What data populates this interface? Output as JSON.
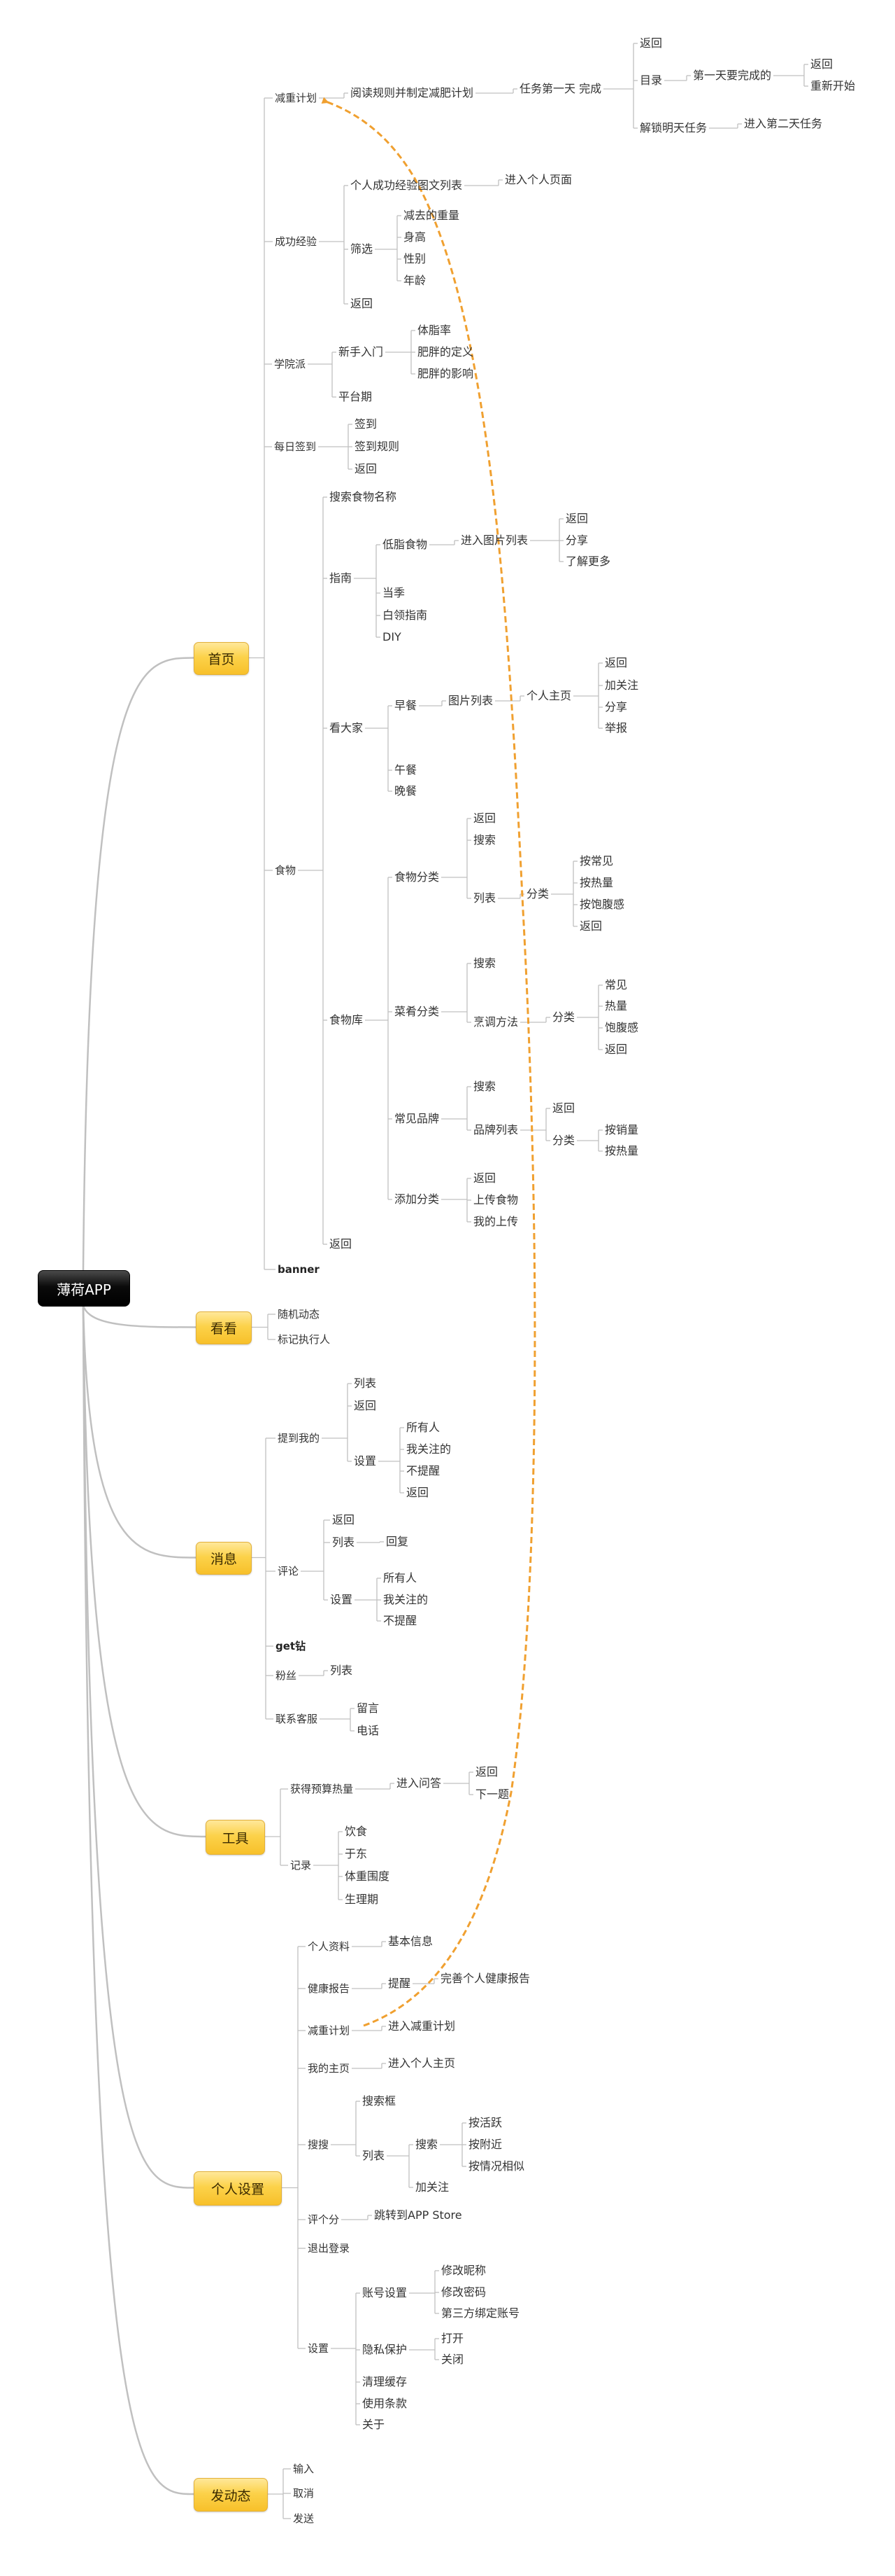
{
  "colors": {
    "main_topic": "#f9c73a",
    "root": "#000000",
    "link": "#c0c0c0",
    "relation_arrow": "#f0a030"
  },
  "relationship": {
    "from": "个人设置 / 减重计划",
    "to": "首页 / 减重计划",
    "style": "dashed-arrow"
  },
  "root": {
    "label": "薄荷APP",
    "children": [
      {
        "label": "首页",
        "children": [
          {
            "label": "减重计划",
            "children": [
              {
                "label": "阅读规则并制定减肥计划",
                "children": [
                  {
                    "label": "任务第一天 完成",
                    "children": [
                      {
                        "label": "返回"
                      },
                      {
                        "label": "目录",
                        "children": [
                          {
                            "label": "第一天要完成的",
                            "children": [
                              {
                                "label": "返回"
                              },
                              {
                                "label": "重新开始"
                              }
                            ]
                          }
                        ]
                      },
                      {
                        "label": "解锁明天任务",
                        "children": [
                          {
                            "label": "进入第二天任务"
                          }
                        ]
                      }
                    ]
                  }
                ]
              }
            ]
          },
          {
            "label": "成功经验",
            "children": [
              {
                "label": "个人成功经验图文列表",
                "children": [
                  {
                    "label": "进入个人页面"
                  }
                ]
              },
              {
                "label": "筛选",
                "children": [
                  {
                    "label": "减去的重量"
                  },
                  {
                    "label": "身高"
                  },
                  {
                    "label": "性别"
                  },
                  {
                    "label": "年龄"
                  }
                ]
              },
              {
                "label": "返回"
              }
            ]
          },
          {
            "label": "学院派",
            "children": [
              {
                "label": "新手入门",
                "children": [
                  {
                    "label": "体脂率"
                  },
                  {
                    "label": "肥胖的定义"
                  },
                  {
                    "label": "肥胖的影响"
                  }
                ]
              },
              {
                "label": "平台期"
              }
            ]
          },
          {
            "label": "每日签到",
            "children": [
              {
                "label": "签到"
              },
              {
                "label": "签到规则"
              },
              {
                "label": "返回"
              }
            ]
          },
          {
            "label": "食物",
            "children": [
              {
                "label": "搜索食物名称"
              },
              {
                "label": "指南",
                "children": [
                  {
                    "label": "低脂食物",
                    "children": [
                      {
                        "label": "进入图片列表",
                        "children": [
                          {
                            "label": "返回"
                          },
                          {
                            "label": "分享"
                          },
                          {
                            "label": "了解更多"
                          }
                        ]
                      }
                    ]
                  },
                  {
                    "label": "当季"
                  },
                  {
                    "label": "白领指南"
                  },
                  {
                    "label": "DIY"
                  }
                ]
              },
              {
                "label": "看大家",
                "children": [
                  {
                    "label": "早餐",
                    "children": [
                      {
                        "label": "图片列表",
                        "children": [
                          {
                            "label": "个人主页",
                            "children": [
                              {
                                "label": "返回"
                              },
                              {
                                "label": "加关注"
                              },
                              {
                                "label": "分享"
                              },
                              {
                                "label": "举报"
                              }
                            ]
                          }
                        ]
                      }
                    ]
                  },
                  {
                    "label": "午餐"
                  },
                  {
                    "label": "晚餐"
                  }
                ]
              },
              {
                "label": "食物库",
                "children": [
                  {
                    "label": "食物分类",
                    "children": [
                      {
                        "label": "返回"
                      },
                      {
                        "label": "搜索"
                      },
                      {
                        "label": "列表",
                        "children": [
                          {
                            "label": "分类",
                            "children": [
                              {
                                "label": "按常见"
                              },
                              {
                                "label": "按热量"
                              },
                              {
                                "label": "按饱腹感"
                              },
                              {
                                "label": "返回"
                              }
                            ]
                          }
                        ]
                      }
                    ]
                  },
                  {
                    "label": "菜肴分类",
                    "children": [
                      {
                        "label": "搜索"
                      },
                      {
                        "label": "烹调方法",
                        "children": [
                          {
                            "label": "分类",
                            "children": [
                              {
                                "label": "常见"
                              },
                              {
                                "label": "热量"
                              },
                              {
                                "label": "饱腹感"
                              },
                              {
                                "label": "返回"
                              }
                            ]
                          }
                        ]
                      }
                    ]
                  },
                  {
                    "label": "常见品牌",
                    "children": [
                      {
                        "label": "搜索"
                      },
                      {
                        "label": "品牌列表",
                        "children": [
                          {
                            "label": "返回"
                          },
                          {
                            "label": "分类",
                            "children": [
                              {
                                "label": "按销量"
                              },
                              {
                                "label": "按热量"
                              }
                            ]
                          }
                        ]
                      }
                    ]
                  },
                  {
                    "label": "添加分类",
                    "children": [
                      {
                        "label": "返回"
                      },
                      {
                        "label": "上传食物"
                      },
                      {
                        "label": "我的上传"
                      }
                    ]
                  }
                ]
              },
              {
                "label": "返回"
              }
            ]
          },
          {
            "label": "banner"
          }
        ]
      },
      {
        "label": "看看",
        "children": [
          {
            "label": "随机动态"
          },
          {
            "label": "标记执行人"
          }
        ]
      },
      {
        "label": "消息",
        "children": [
          {
            "label": "提到我的",
            "children": [
              {
                "label": "列表"
              },
              {
                "label": "返回"
              },
              {
                "label": "设置",
                "children": [
                  {
                    "label": "所有人"
                  },
                  {
                    "label": "我关注的"
                  },
                  {
                    "label": "不提醒"
                  },
                  {
                    "label": "返回"
                  }
                ]
              }
            ]
          },
          {
            "label": "评论",
            "children": [
              {
                "label": "返回"
              },
              {
                "label": "列表",
                "children": [
                  {
                    "label": "回复"
                  }
                ]
              },
              {
                "label": "设置",
                "children": [
                  {
                    "label": "所有人"
                  },
                  {
                    "label": "我关注的"
                  },
                  {
                    "label": "不提醒"
                  }
                ]
              }
            ]
          },
          {
            "label": "get钻"
          },
          {
            "label": "粉丝",
            "children": [
              {
                "label": "列表"
              }
            ]
          },
          {
            "label": "联系客服",
            "children": [
              {
                "label": "留言"
              },
              {
                "label": "电话"
              }
            ]
          }
        ]
      },
      {
        "label": "工具",
        "children": [
          {
            "label": "获得预算热量",
            "children": [
              {
                "label": "进入问答",
                "children": [
                  {
                    "label": "返回"
                  },
                  {
                    "label": "下一题"
                  }
                ]
              }
            ]
          },
          {
            "label": "记录",
            "children": [
              {
                "label": "饮食"
              },
              {
                "label": "于东"
              },
              {
                "label": "体重围度"
              },
              {
                "label": "生理期"
              }
            ]
          }
        ]
      },
      {
        "label": "个人设置",
        "children": [
          {
            "label": "个人资料",
            "children": [
              {
                "label": "基本信息"
              }
            ]
          },
          {
            "label": "健康报告",
            "children": [
              {
                "label": "提醒",
                "children": [
                  {
                    "label": "完善个人健康报告"
                  }
                ]
              }
            ]
          },
          {
            "label": "减重计划",
            "children": [
              {
                "label": "进入减重计划"
              }
            ]
          },
          {
            "label": "我的主页",
            "children": [
              {
                "label": "进入个人主页"
              }
            ]
          },
          {
            "label": "搜搜",
            "children": [
              {
                "label": "搜索框"
              },
              {
                "label": "列表",
                "children": [
                  {
                    "label": "搜索",
                    "children": [
                      {
                        "label": "按活跃"
                      },
                      {
                        "label": "按附近"
                      },
                      {
                        "label": "按情况相似"
                      }
                    ]
                  },
                  {
                    "label": "加关注"
                  }
                ]
              }
            ]
          },
          {
            "label": "评个分",
            "children": [
              {
                "label": "跳转到APP Store"
              }
            ]
          },
          {
            "label": "退出登录"
          },
          {
            "label": "设置",
            "children": [
              {
                "label": "账号设置",
                "children": [
                  {
                    "label": "修改昵称"
                  },
                  {
                    "label": "修改密码"
                  },
                  {
                    "label": "第三方绑定账号"
                  }
                ]
              },
              {
                "label": "隐私保护",
                "children": [
                  {
                    "label": "打开"
                  },
                  {
                    "label": "关闭"
                  }
                ]
              },
              {
                "label": "清理缓存"
              },
              {
                "label": "使用条款"
              },
              {
                "label": "关于"
              }
            ]
          }
        ]
      },
      {
        "label": "发动态",
        "children": [
          {
            "label": "输入"
          },
          {
            "label": "取消"
          },
          {
            "label": "发送"
          }
        ]
      }
    ]
  }
}
